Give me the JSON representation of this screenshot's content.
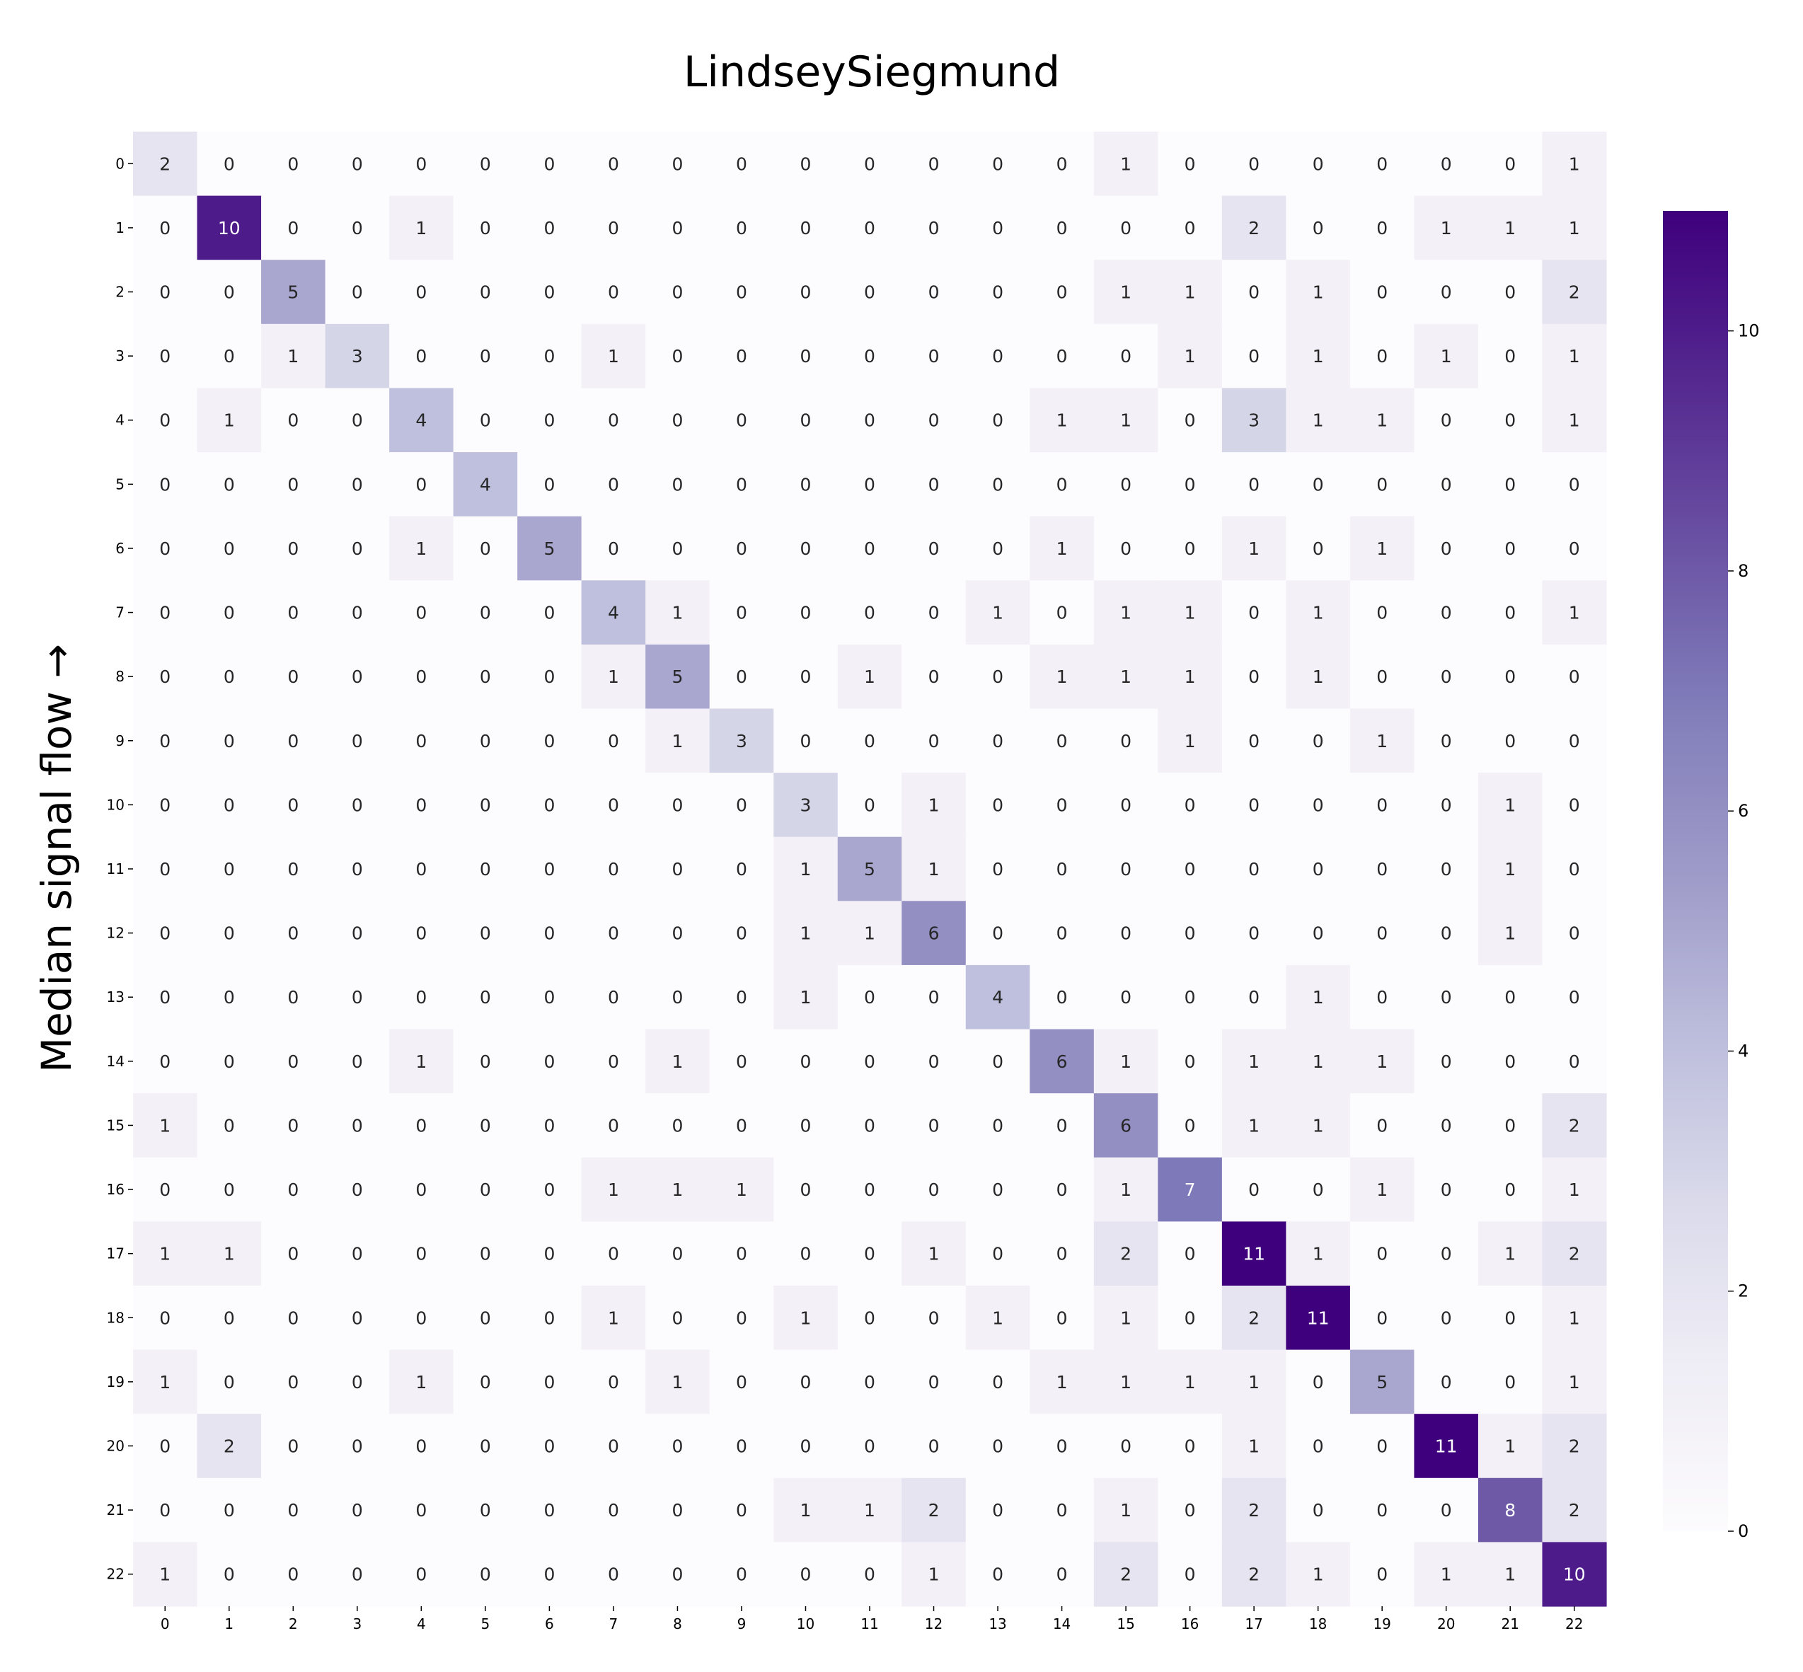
{
  "chart_data": {
    "type": "heatmap",
    "title": "LindseySiegmund",
    "xlabel": "",
    "ylabel": "Median signal flow →",
    "x_tick_labels": [
      "0",
      "1",
      "2",
      "3",
      "4",
      "5",
      "6",
      "7",
      "8",
      "9",
      "10",
      "11",
      "12",
      "13",
      "14",
      "15",
      "16",
      "17",
      "18",
      "19",
      "20",
      "21",
      "22"
    ],
    "y_tick_labels": [
      "0",
      "1",
      "2",
      "3",
      "4",
      "5",
      "6",
      "7",
      "8",
      "9",
      "10",
      "11",
      "12",
      "13",
      "14",
      "15",
      "16",
      "17",
      "18",
      "19",
      "20",
      "21",
      "22"
    ],
    "matrix": [
      [
        2,
        0,
        0,
        0,
        0,
        0,
        0,
        0,
        0,
        0,
        0,
        0,
        0,
        0,
        0,
        1,
        0,
        0,
        0,
        0,
        0,
        0,
        1
      ],
      [
        0,
        10,
        0,
        0,
        1,
        0,
        0,
        0,
        0,
        0,
        0,
        0,
        0,
        0,
        0,
        0,
        0,
        2,
        0,
        0,
        1,
        1,
        1
      ],
      [
        0,
        0,
        5,
        0,
        0,
        0,
        0,
        0,
        0,
        0,
        0,
        0,
        0,
        0,
        0,
        1,
        1,
        0,
        1,
        0,
        0,
        0,
        2
      ],
      [
        0,
        0,
        1,
        3,
        0,
        0,
        0,
        1,
        0,
        0,
        0,
        0,
        0,
        0,
        0,
        0,
        1,
        0,
        1,
        0,
        1,
        0,
        1
      ],
      [
        0,
        1,
        0,
        0,
        4,
        0,
        0,
        0,
        0,
        0,
        0,
        0,
        0,
        0,
        1,
        1,
        0,
        3,
        1,
        1,
        0,
        0,
        1
      ],
      [
        0,
        0,
        0,
        0,
        0,
        4,
        0,
        0,
        0,
        0,
        0,
        0,
        0,
        0,
        0,
        0,
        0,
        0,
        0,
        0,
        0,
        0,
        0
      ],
      [
        0,
        0,
        0,
        0,
        1,
        0,
        5,
        0,
        0,
        0,
        0,
        0,
        0,
        0,
        1,
        0,
        0,
        1,
        0,
        1,
        0,
        0,
        0
      ],
      [
        0,
        0,
        0,
        0,
        0,
        0,
        0,
        4,
        1,
        0,
        0,
        0,
        0,
        1,
        0,
        1,
        1,
        0,
        1,
        0,
        0,
        0,
        1
      ],
      [
        0,
        0,
        0,
        0,
        0,
        0,
        0,
        1,
        5,
        0,
        0,
        1,
        0,
        0,
        1,
        1,
        1,
        0,
        1,
        0,
        0,
        0,
        0
      ],
      [
        0,
        0,
        0,
        0,
        0,
        0,
        0,
        0,
        1,
        3,
        0,
        0,
        0,
        0,
        0,
        0,
        1,
        0,
        0,
        1,
        0,
        0,
        0
      ],
      [
        0,
        0,
        0,
        0,
        0,
        0,
        0,
        0,
        0,
        0,
        3,
        0,
        1,
        0,
        0,
        0,
        0,
        0,
        0,
        0,
        0,
        1,
        0
      ],
      [
        0,
        0,
        0,
        0,
        0,
        0,
        0,
        0,
        0,
        0,
        1,
        5,
        1,
        0,
        0,
        0,
        0,
        0,
        0,
        0,
        0,
        1,
        0
      ],
      [
        0,
        0,
        0,
        0,
        0,
        0,
        0,
        0,
        0,
        0,
        1,
        1,
        6,
        0,
        0,
        0,
        0,
        0,
        0,
        0,
        0,
        1,
        0
      ],
      [
        0,
        0,
        0,
        0,
        0,
        0,
        0,
        0,
        0,
        0,
        1,
        0,
        0,
        4,
        0,
        0,
        0,
        0,
        1,
        0,
        0,
        0,
        0
      ],
      [
        0,
        0,
        0,
        0,
        1,
        0,
        0,
        0,
        1,
        0,
        0,
        0,
        0,
        0,
        6,
        1,
        0,
        1,
        1,
        1,
        0,
        0,
        0
      ],
      [
        1,
        0,
        0,
        0,
        0,
        0,
        0,
        0,
        0,
        0,
        0,
        0,
        0,
        0,
        0,
        6,
        0,
        1,
        1,
        0,
        0,
        0,
        2
      ],
      [
        0,
        0,
        0,
        0,
        0,
        0,
        0,
        1,
        1,
        1,
        0,
        0,
        0,
        0,
        0,
        1,
        7,
        0,
        0,
        1,
        0,
        0,
        1
      ],
      [
        1,
        1,
        0,
        0,
        0,
        0,
        0,
        0,
        0,
        0,
        0,
        0,
        1,
        0,
        0,
        2,
        0,
        11,
        1,
        0,
        0,
        1,
        2
      ],
      [
        0,
        0,
        0,
        0,
        0,
        0,
        0,
        1,
        0,
        0,
        1,
        0,
        0,
        1,
        0,
        1,
        0,
        2,
        11,
        0,
        0,
        0,
        1
      ],
      [
        1,
        0,
        0,
        0,
        1,
        0,
        0,
        0,
        1,
        0,
        0,
        0,
        0,
        0,
        1,
        1,
        1,
        1,
        0,
        5,
        0,
        0,
        1
      ],
      [
        0,
        2,
        0,
        0,
        0,
        0,
        0,
        0,
        0,
        0,
        0,
        0,
        0,
        0,
        0,
        0,
        0,
        1,
        0,
        0,
        11,
        1,
        2
      ],
      [
        0,
        0,
        0,
        0,
        0,
        0,
        0,
        0,
        0,
        0,
        1,
        1,
        2,
        0,
        0,
        1,
        0,
        2,
        0,
        0,
        0,
        8,
        2
      ],
      [
        1,
        0,
        0,
        0,
        0,
        0,
        0,
        0,
        0,
        0,
        0,
        0,
        1,
        0,
        0,
        2,
        0,
        2,
        1,
        0,
        1,
        1,
        10
      ]
    ],
    "vmin": 0,
    "vmax": 11,
    "colormap": "Purples",
    "colorbar_ticks": [
      0,
      2,
      4,
      6,
      8,
      10
    ],
    "grid": false,
    "colors": {
      "low": "#fcfbfd",
      "high": "#3f007d",
      "text_dark": "#262626",
      "text_light": "#ffffff"
    }
  }
}
